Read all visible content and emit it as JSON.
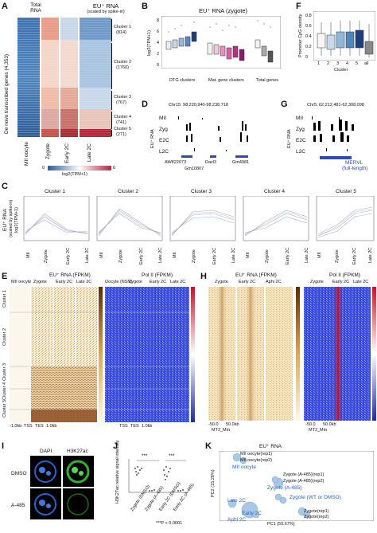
{
  "panels": {
    "A": "A",
    "B": "B",
    "C": "C",
    "D": "D",
    "E": "E",
    "F": "F",
    "G": "G",
    "H": "H",
    "I": "I",
    "J": "J",
    "K": "K"
  },
  "a": {
    "total_rna": "Total\nRNA",
    "eu_rna": "EU⁺ RNA",
    "eu_sub": "(scaled by spike-in)",
    "ylabel": "De novo transcribed genes (4,353)",
    "clusters": [
      {
        "name": "Cluster 1",
        "n": "(814)"
      },
      {
        "name": "Cluster 2",
        "n": "(1760)"
      },
      {
        "name": "Cluster 3",
        "n": "(767)"
      },
      {
        "name": "Cluster 4",
        "n": "(741)"
      },
      {
        "name": "Cluster 5",
        "n": "(271)"
      }
    ],
    "xlabels": [
      "MII oocyte",
      "Zygote",
      "Early 2C",
      "Late 2C"
    ],
    "scale_min": "0",
    "scale_max": "6",
    "scale_label": "log2(TPM+1)"
  },
  "b": {
    "title": "EU⁺ RNA (zygote)",
    "ylabel": "log2(TPM+1)",
    "yticks": [
      "8",
      "6",
      "4",
      "2",
      "0"
    ],
    "group1": "DTG clusters",
    "group2": "Mat. gene clusters",
    "group3": "Total genes"
  },
  "f": {
    "ylabel": "Promoter CpG density",
    "yticks": [
      "0.8",
      "0.6",
      "0.4",
      "0.2",
      "0"
    ],
    "xlabel": "Cluster",
    "xticks": [
      "1",
      "2",
      "3",
      "4",
      "5",
      "all"
    ]
  },
  "d": {
    "coords": "Chr15: 98,220,940-98,238,718",
    "tracks": [
      "MII",
      "Zyg",
      "E2C",
      "L2C"
    ],
    "ylabel": "EU⁺ RNA",
    "genes": [
      "AW822073",
      "Dazl3",
      "Gm4981",
      "Gm10807"
    ]
  },
  "g": {
    "coords": "Chr5: 62,212,481-62,308,098",
    "tracks": [
      "MII",
      "Zyg",
      "E2C",
      "L2C"
    ],
    "ylabel": "EU⁺ RNA",
    "gene": "MERVL",
    "gene_sub": "(full-length)"
  },
  "c": {
    "ylabel": "EU⁺ RNA",
    "ysub": "(scaled by spike-in)",
    "ysub2": "log2(TPM+1)",
    "panels": [
      "Cluster 1",
      "Cluster 2",
      "Cluster 3",
      "Cluster 4",
      "Cluster 5"
    ],
    "xticks": [
      "MII",
      "Zygote",
      "Early 2C",
      "Late 2C"
    ]
  },
  "e": {
    "eu_title": "EU⁺ RNA (FPKM)",
    "pol_title": "Pol II (FPKM)",
    "cols_eu": [
      "MII oocyte",
      "Zygote",
      "Early 2C",
      "Late 2C"
    ],
    "cols_pol": [
      "Oocyte (NSN)",
      "Zygote",
      "Early 2C",
      "Late 2C"
    ],
    "clusters": [
      "Cluster 1",
      "Cluster 2",
      "Cluster 3",
      "Cluster 4",
      "Cluster 5"
    ],
    "tss": "TSS",
    "tes": "TES",
    "kb": "1.0kb",
    "kb2": "-1.0kb"
  },
  "h": {
    "eu_title": "EU⁺ RNA (FPKM)",
    "pol_title": "Pol II (FPKM)",
    "cols_eu": [
      "Zygote",
      "Early 2C",
      "Aphi 2C"
    ],
    "cols_pol": [
      "Zygote",
      "Early 2C",
      "Late 2C"
    ],
    "mt2": "MT2_Mm",
    "kb_l": "-50.0",
    "kb_r": "50.0kb"
  },
  "i": {
    "dapi": "DAPI",
    "h3k27ac": "H3K27ac",
    "rows": [
      "DMSO",
      "A-485"
    ]
  },
  "j": {
    "ylabel": "H3K27ac relative signal intensity",
    "stars": [
      "***",
      "***"
    ],
    "xticks": [
      "Zygote (DMSO)",
      "Zygote (A-485)",
      "Early 2C (DMSO)",
      "Early 2C (A-485)"
    ],
    "pnote": "***P < 0.0001"
  },
  "k": {
    "title": "EU⁺ RNA",
    "xlabel": "PC1 (59.67%)",
    "ylabel": "PC2 (15.28%)",
    "labels": [
      "MII oocyte(rep1)",
      "MII oocyte(rep2)",
      "MII oocyte",
      "Zygote (A-485)(rep1)",
      "Zygote (A-485)(rep2)",
      "Zygote (A-485)",
      "Zygote (WT or DMSO)",
      "Zygote(rep1)",
      "Zygote(rep2)",
      "Late 2C",
      "Early 2C",
      "Aphi 2C"
    ]
  }
}
